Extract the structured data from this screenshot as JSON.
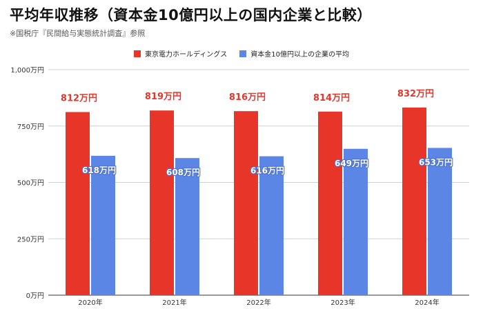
{
  "header": {
    "title": "平均年収推移（資本金10億円以上の国内企業と比較）",
    "source_note": "※国税庁『民間給与実態統計調査』参照"
  },
  "chart_data": {
    "type": "bar",
    "categories": [
      "2020年",
      "2021年",
      "2022年",
      "2023年",
      "2024年"
    ],
    "series": [
      {
        "name": "東京電力ホールディングス",
        "color": "#e8352a",
        "values": [
          812,
          819,
          816,
          814,
          832
        ],
        "labels": [
          "812万円",
          "819万円",
          "816万円",
          "814万円",
          "832万円"
        ]
      },
      {
        "name": "資本金10億円以上の企業の平均",
        "color": "#5b86e5",
        "values": [
          618,
          608,
          616,
          649,
          653
        ],
        "labels": [
          "618万円",
          "608万円",
          "616万円",
          "649万円",
          "653万円"
        ]
      }
    ],
    "ylim": [
      0,
      1000
    ],
    "y_ticks": [
      0,
      250,
      500,
      750,
      1000
    ],
    "y_tick_labels": [
      "0万円",
      "250万円",
      "500万円",
      "750万円",
      "1,000万円"
    ],
    "grid": true,
    "legend_position": "top-center"
  }
}
